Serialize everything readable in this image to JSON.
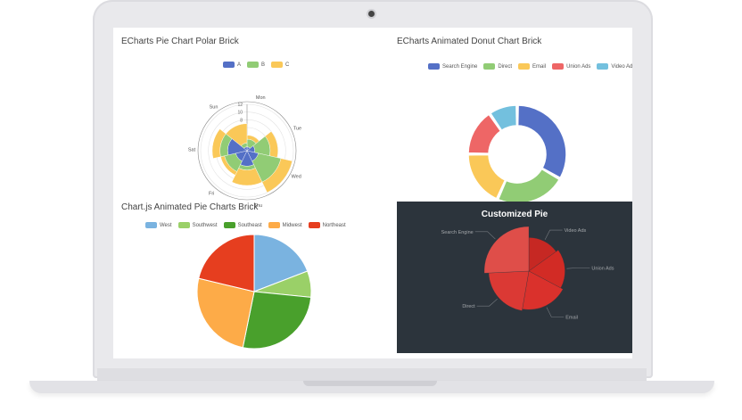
{
  "panels": {
    "polar_title": "ECharts Pie Chart Polar Brick",
    "donut_title": "ECharts Animated Donut Chart Brick",
    "pie_title": "Chart.js Animated Pie Charts Brick",
    "custom_title": "Customized Pie"
  },
  "colors": {
    "blue": "#5470c6",
    "green": "#91cc75",
    "yellow": "#fac858",
    "red": "#ee6666",
    "cyan": "#73c0de",
    "pie_west": "#7ab3e0",
    "pie_southwest": "#9ad068",
    "pie_southeast": "#49a02c",
    "pie_midwest": "#fdab48",
    "pie_northeast": "#e63e1f",
    "dark_bg": "#2c343c"
  },
  "chart_data": [
    {
      "type": "bar",
      "title": "ECharts Pie Chart Polar Brick",
      "coordinate": "polar",
      "categories": [
        "Mon",
        "Tue",
        "Wed",
        "Thu",
        "Fri",
        "Sat",
        "Sun"
      ],
      "radial_ticks": [
        "2",
        "4",
        "6",
        "8",
        "10",
        "12"
      ],
      "rlim": [
        0,
        12
      ],
      "stacked": true,
      "series": [
        {
          "name": "A",
          "values": [
            1,
            2,
            3,
            4,
            3,
            5,
            1
          ]
        },
        {
          "name": "B",
          "values": [
            2,
            4,
            6,
            1,
            3,
            2,
            1
          ]
        },
        {
          "name": "C",
          "values": [
            1,
            2,
            3,
            4,
            1,
            2,
            5
          ]
        }
      ],
      "legend_position": "top-center"
    },
    {
      "type": "pie",
      "title": "ECharts Animated Donut Chart Brick",
      "donut": true,
      "labels": [
        "Search Engine",
        "Direct",
        "Email",
        "Union Ads",
        "Video Ads"
      ],
      "values": [
        1048,
        735,
        580,
        484,
        300
      ],
      "legend_position": "top-right"
    },
    {
      "type": "pie",
      "title": "Chart.js Animated Pie Charts Brick",
      "labels": [
        "West",
        "Southwest",
        "Southeast",
        "Midwest",
        "Northeast"
      ],
      "values": [
        18,
        7,
        25,
        24,
        20
      ],
      "legend_position": "top-center"
    },
    {
      "type": "pie",
      "title": "Customized Pie",
      "rose": true,
      "labels": [
        "Video Ads",
        "Union Ads",
        "Email",
        "Direct",
        "Search Engine"
      ],
      "values": [
        235,
        274,
        310,
        335,
        400
      ],
      "label_placement": "outside"
    }
  ]
}
